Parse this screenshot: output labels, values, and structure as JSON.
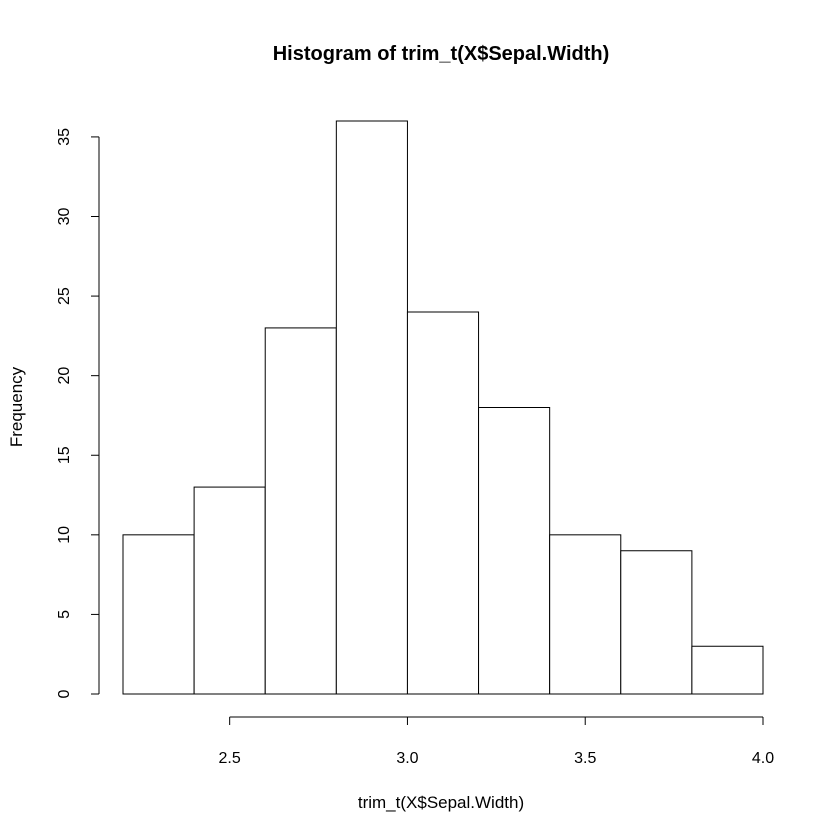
{
  "chart_data": {
    "type": "bar",
    "title": "Histogram of trim_t(X$Sepal.Width)",
    "xlabel": "trim_t(X$Sepal.Width)",
    "ylabel": "Frequency",
    "bin_edges": [
      2.2,
      2.4,
      2.6,
      2.8,
      3.0,
      3.2,
      3.4,
      3.6,
      3.8,
      4.0
    ],
    "values": [
      10,
      13,
      23,
      36,
      24,
      18,
      10,
      9,
      3
    ],
    "xticks": [
      2.5,
      3.0,
      3.5,
      4.0
    ],
    "xtick_labels": [
      "2.5",
      "3.0",
      "3.5",
      "4.0"
    ],
    "xlim": [
      2.2,
      4.0
    ],
    "yticks": [
      0,
      5,
      10,
      15,
      20,
      25,
      30,
      35
    ],
    "yticks_labels": [
      "0",
      "5",
      "10",
      "15",
      "20",
      "25",
      "30",
      "35"
    ],
    "ylim": [
      0,
      36
    ],
    "grid": false,
    "legend": "none",
    "bar_fill": "#ffffff",
    "bar_stroke": "#000000"
  }
}
